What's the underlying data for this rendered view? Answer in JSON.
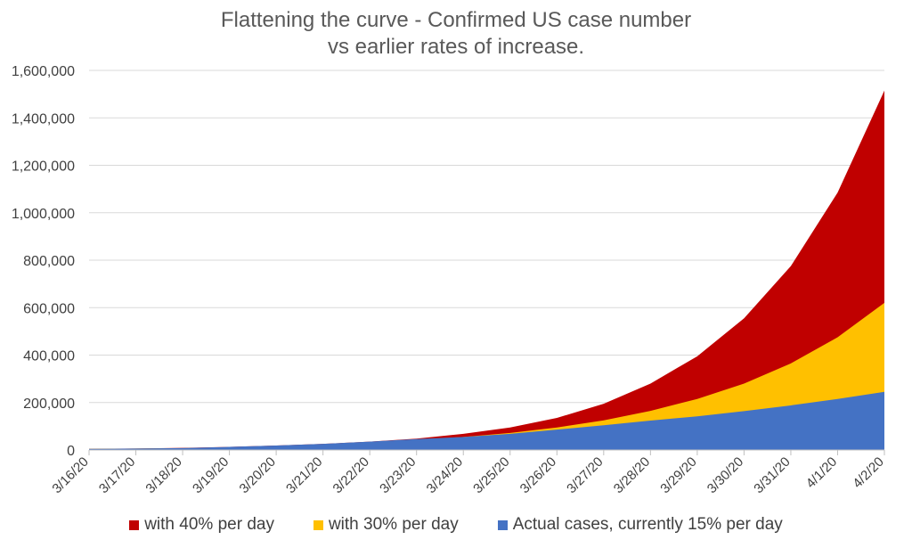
{
  "chart_data": {
    "type": "area",
    "title_lines": [
      "Flattening the curve - Confirmed US case number",
      "vs earlier rates of increase."
    ],
    "categories": [
      "3/16/20",
      "3/17/20",
      "3/18/20",
      "3/19/20",
      "3/20/20",
      "3/21/20",
      "3/22/20",
      "3/23/20",
      "3/24/20",
      "3/25/20",
      "3/26/20",
      "3/27/20",
      "3/28/20",
      "3/29/20",
      "3/30/20",
      "3/31/20",
      "4/1/20",
      "4/2/20"
    ],
    "y_ticks": [
      "0",
      "200,000",
      "400,000",
      "600,000",
      "800,000",
      "1,000,000",
      "1,200,000",
      "1,400,000",
      "1,600,000"
    ],
    "ylim": [
      0,
      1600000
    ],
    "grid": true,
    "legend_position": "bottom",
    "series": [
      {
        "name": "with 40% per day",
        "color": "#C00000",
        "values": [
          4500,
          6300,
          9000,
          13000,
          19000,
          26000,
          35000,
          48000,
          68000,
          95000,
          135000,
          195000,
          280000,
          395000,
          555000,
          775000,
          1085000,
          1515000
        ]
      },
      {
        "name": "with 30%  per day",
        "color": "#FFC000",
        "values": [
          4500,
          5900,
          7600,
          9900,
          13000,
          17000,
          32000,
          42000,
          55000,
          72000,
          95000,
          125000,
          165000,
          215000,
          280000,
          365000,
          475000,
          620000
        ]
      },
      {
        "name": "Actual cases, currently 15% per day",
        "color": "#4472C4",
        "values": [
          4500,
          6000,
          7800,
          13000,
          19000,
          26000,
          35000,
          46000,
          55000,
          68000,
          86000,
          104000,
          124000,
          142000,
          164000,
          188000,
          215000,
          245000
        ]
      }
    ]
  }
}
